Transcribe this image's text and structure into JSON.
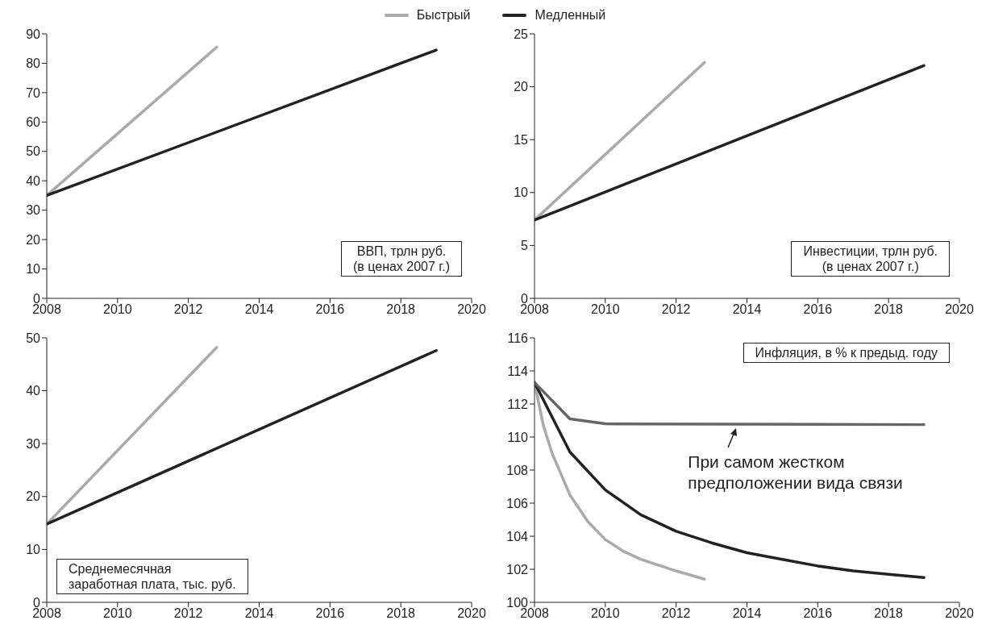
{
  "chart_data": [
    {
      "type": "line",
      "legend": "top",
      "xlim": [
        2008,
        2020
      ],
      "xticks": [
        2008,
        2010,
        2012,
        2014,
        2016,
        2018,
        2020
      ],
      "ylim": [
        0,
        90
      ],
      "yticks": [
        0,
        10,
        20,
        30,
        40,
        50,
        60,
        70,
        80,
        90
      ],
      "annotations": [
        "ВВП, трлн руб.\n(в ценах 2007 г.)"
      ],
      "series": [
        {
          "name": "Быстрый",
          "color": "#aaaaaa",
          "x": [
            2008,
            2012.8
          ],
          "values": [
            35,
            85.5
          ]
        },
        {
          "name": "Медленный",
          "color": "#222222",
          "x": [
            2008,
            2019
          ],
          "values": [
            35,
            84.5
          ]
        }
      ]
    },
    {
      "type": "line",
      "xlim": [
        2008,
        2020
      ],
      "xticks": [
        2008,
        2010,
        2012,
        2014,
        2016,
        2018,
        2020
      ],
      "ylim": [
        0,
        25
      ],
      "yticks": [
        0,
        5,
        10,
        15,
        20,
        25
      ],
      "annotations": [
        "Инвестиции, трлн руб.\n(в ценах 2007 г.)"
      ],
      "series": [
        {
          "color": "#aaaaaa",
          "x": [
            2008,
            2012.8
          ],
          "values": [
            7.4,
            22.3
          ]
        },
        {
          "color": "#222222",
          "x": [
            2008,
            2019
          ],
          "values": [
            7.4,
            22
          ]
        }
      ]
    },
    {
      "type": "line",
      "xlim": [
        2008,
        2020
      ],
      "xticks": [
        2008,
        2010,
        2012,
        2014,
        2016,
        2018,
        2020
      ],
      "ylim": [
        0,
        50
      ],
      "yticks": [
        0,
        10,
        20,
        30,
        40,
        50
      ],
      "annotations": [
        "Среднемесячная\nзаработная плата, тыс. руб."
      ],
      "series": [
        {
          "color": "#aaaaaa",
          "x": [
            2008,
            2012.8
          ],
          "values": [
            14.8,
            48.2
          ]
        },
        {
          "color": "#222222",
          "x": [
            2008,
            2019
          ],
          "values": [
            14.8,
            47.6
          ]
        }
      ]
    },
    {
      "type": "line",
      "xlim": [
        2008,
        2020
      ],
      "xticks": [
        2008,
        2010,
        2012,
        2014,
        2016,
        2018,
        2020
      ],
      "ylim": [
        100,
        116
      ],
      "yticks": [
        100,
        102,
        104,
        106,
        108,
        110,
        112,
        114,
        116
      ],
      "annotations": [
        "Инфляция, в % к предыд. году",
        {
          "text": "При самом жестком\nпредположении вида связи",
          "x": 2013.7,
          "y": 110.8
        }
      ],
      "series": [
        {
          "color": "#aaaaaa",
          "x": [
            2008,
            2008.25,
            2008.5,
            2009,
            2009.5,
            2010,
            2010.5,
            2011,
            2012,
            2012.8
          ],
          "values": [
            113.3,
            110.7,
            109,
            106.5,
            104.9,
            103.8,
            103.1,
            102.6,
            101.9,
            101.4
          ]
        },
        {
          "color": "#222222",
          "x": [
            2008,
            2009,
            2010,
            2011,
            2012,
            2013,
            2014,
            2015,
            2016,
            2017,
            2018,
            2019
          ],
          "values": [
            113.3,
            109.1,
            106.8,
            105.3,
            104.3,
            103.6,
            103,
            102.6,
            102.2,
            101.9,
            101.7,
            101.5
          ]
        },
        {
          "color": "#666666",
          "x": [
            2008,
            2009,
            2010,
            2019
          ],
          "values": [
            113.3,
            111.1,
            110.8,
            110.75
          ]
        }
      ]
    }
  ]
}
